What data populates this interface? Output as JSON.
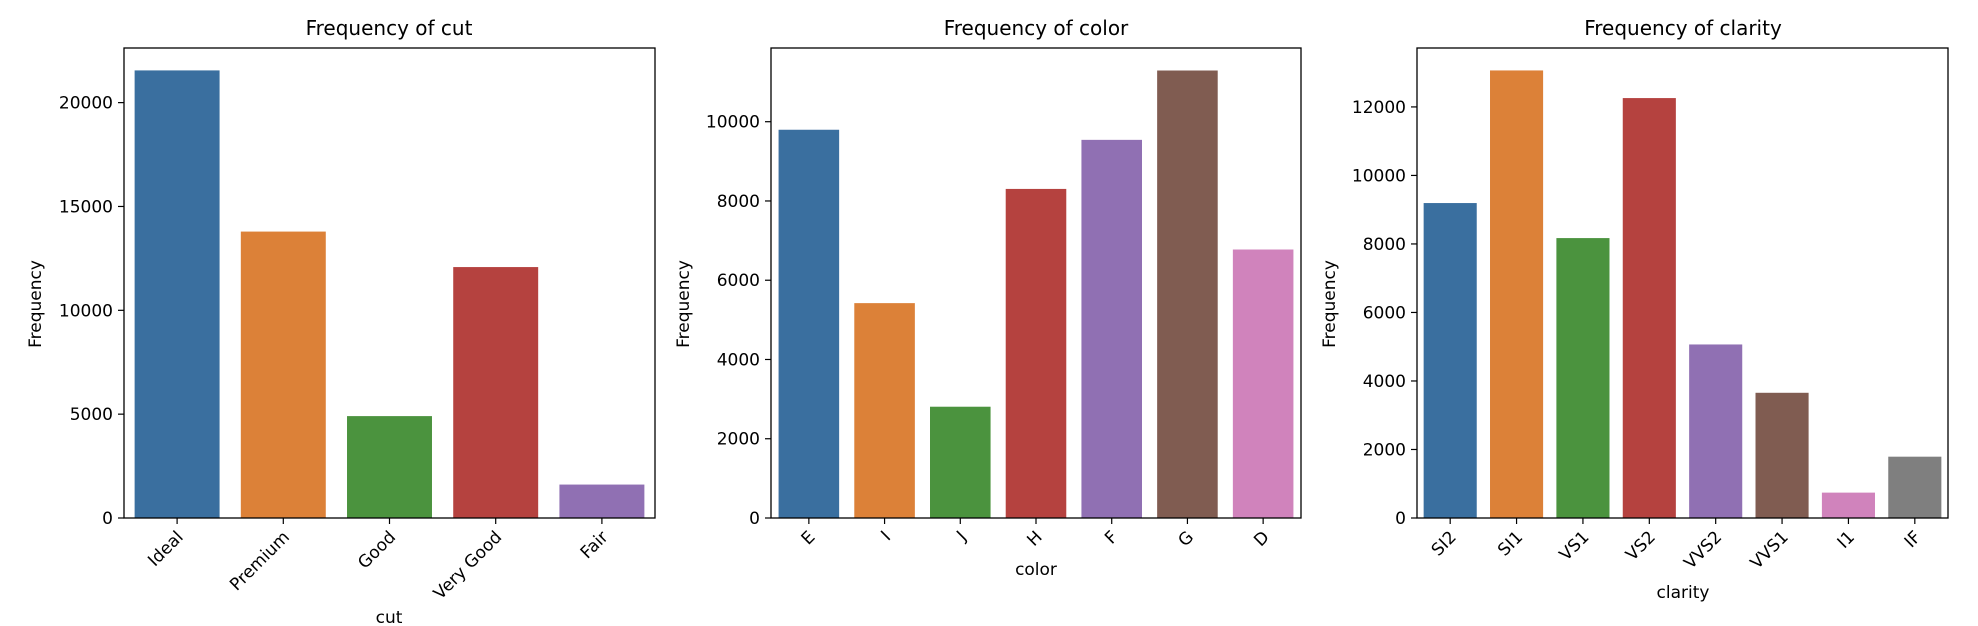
{
  "chart_data": [
    {
      "type": "bar",
      "title": "Frequency of cut",
      "xlabel": "cut",
      "ylabel": "Frequency",
      "categories": [
        "Ideal",
        "Premium",
        "Good",
        "Very Good",
        "Fair"
      ],
      "values": [
        21551,
        13791,
        4906,
        12082,
        1610
      ],
      "colors": [
        "#3a6f9f",
        "#dc8138",
        "#4b933e",
        "#b5423f",
        "#9070b3"
      ],
      "ylim": [
        0,
        22630
      ],
      "yticks": [
        0,
        5000,
        10000,
        15000,
        20000
      ],
      "ytick_labels": [
        "0",
        "5000",
        "10000",
        "15000",
        "20000"
      ]
    },
    {
      "type": "bar",
      "title": "Frequency of color",
      "xlabel": "color",
      "ylabel": "Frequency",
      "categories": [
        "E",
        "I",
        "J",
        "H",
        "F",
        "G",
        "D"
      ],
      "values": [
        9797,
        5422,
        2808,
        8304,
        9542,
        11292,
        6775
      ],
      "colors": [
        "#3a6f9f",
        "#dc8138",
        "#4b933e",
        "#b5423f",
        "#9070b3",
        "#805c51",
        "#d083bc"
      ],
      "ylim": [
        0,
        11860
      ],
      "yticks": [
        0,
        2000,
        4000,
        6000,
        8000,
        10000
      ],
      "ytick_labels": [
        "0",
        "2000",
        "4000",
        "6000",
        "8000",
        "10000"
      ]
    },
    {
      "type": "bar",
      "title": "Frequency of clarity",
      "xlabel": "clarity",
      "ylabel": "Frequency",
      "categories": [
        "SI2",
        "SI1",
        "VS1",
        "VS2",
        "VVS2",
        "VVS1",
        "I1",
        "IF"
      ],
      "values": [
        9194,
        13065,
        8171,
        12258,
        5066,
        3655,
        741,
        1790
      ],
      "colors": [
        "#3a6f9f",
        "#dc8138",
        "#4b933e",
        "#b5423f",
        "#9070b3",
        "#805c51",
        "#d083bc",
        "#7f7f7f"
      ],
      "ylim": [
        0,
        13720
      ],
      "yticks": [
        0,
        2000,
        4000,
        6000,
        8000,
        10000,
        12000
      ],
      "ytick_labels": [
        "0",
        "2000",
        "4000",
        "6000",
        "8000",
        "10000",
        "12000"
      ]
    }
  ]
}
